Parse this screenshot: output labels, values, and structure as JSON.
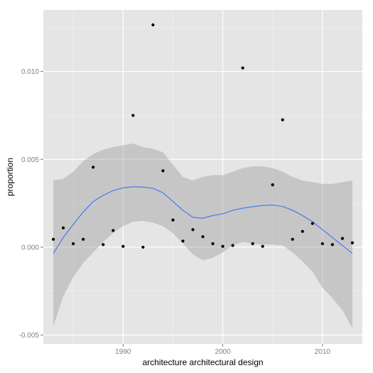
{
  "chart_data": {
    "type": "scatter",
    "title": "",
    "xlabel": "architecture architectural design",
    "ylabel": "proportion",
    "xlim": [
      1982,
      2014
    ],
    "ylim": [
      -0.0055,
      0.0135
    ],
    "x_ticks": [
      1990,
      2000,
      2010
    ],
    "x_tick_labels": [
      "1990",
      "2000",
      "2010"
    ],
    "y_ticks": [
      -0.005,
      0.0,
      0.005,
      0.01
    ],
    "y_tick_labels": [
      "-0.005",
      "0.000",
      "0.005",
      "0.010"
    ],
    "grid": true,
    "points": {
      "x": [
        1983,
        1984,
        1985,
        1986,
        1987,
        1988,
        1989,
        1990,
        1991,
        1992,
        1993,
        1994,
        1995,
        1996,
        1997,
        1998,
        1999,
        2000,
        2001,
        2002,
        2003,
        2004,
        2005,
        2006,
        2007,
        2008,
        2009,
        2010,
        2011,
        2012,
        2013
      ],
      "y": [
        0.00045,
        0.0011,
        0.0002,
        0.00045,
        0.00455,
        0.00015,
        0.00095,
        5e-05,
        0.0075,
        0.0,
        0.01265,
        0.00435,
        0.00155,
        0.00035,
        0.001,
        0.0006,
        0.0002,
        5e-05,
        0.0001,
        0.0102,
        0.0002,
        5e-05,
        0.00355,
        0.00725,
        0.00045,
        0.0009,
        0.00135,
        0.0002,
        0.00015,
        0.0005,
        0.00025
      ]
    },
    "smooth": {
      "x": [
        1983,
        1984,
        1985,
        1986,
        1987,
        1988,
        1989,
        1990,
        1991,
        1992,
        1993,
        1994,
        1995,
        1996,
        1997,
        1998,
        1999,
        2000,
        2001,
        2002,
        2003,
        2004,
        2005,
        2006,
        2007,
        2008,
        2009,
        2010,
        2011,
        2012,
        2013
      ],
      "y": [
        -0.00035,
        0.00055,
        0.0013,
        0.002,
        0.0026,
        0.00295,
        0.00322,
        0.00338,
        0.00344,
        0.00342,
        0.00335,
        0.0031,
        0.0026,
        0.0021,
        0.0017,
        0.00165,
        0.0018,
        0.0019,
        0.0021,
        0.00222,
        0.0023,
        0.00238,
        0.0024,
        0.00232,
        0.0021,
        0.0018,
        0.00145,
        0.001,
        0.00055,
        0.0001,
        -0.00035
      ],
      "ymin": [
        -0.0045,
        -0.0028,
        -0.0017,
        -0.0009,
        -0.0003,
        0.0003,
        0.0008,
        0.0012,
        0.00145,
        0.0015,
        0.0014,
        0.0012,
        0.0008,
        0.0002,
        -0.0004,
        -0.00075,
        -0.0006,
        -0.0003,
        0.0001,
        0.0003,
        0.0002,
        0.00015,
        0.00015,
        0.0001,
        -0.0003,
        -0.0008,
        -0.0014,
        -0.0023,
        -0.0029,
        -0.0036,
        -0.0046
      ],
      "ymax": [
        0.0038,
        0.0039,
        0.0043,
        0.0049,
        0.0053,
        0.00555,
        0.0057,
        0.0058,
        0.0059,
        0.0057,
        0.0056,
        0.0054,
        0.0047,
        0.004,
        0.0038,
        0.004,
        0.0041,
        0.0041,
        0.0043,
        0.0045,
        0.0046,
        0.0046,
        0.0045,
        0.0043,
        0.004,
        0.0038,
        0.0037,
        0.0036,
        0.0036,
        0.0037,
        0.0038
      ]
    },
    "colors": {
      "panel": "#e5e5e5",
      "grid_major": "#ffffff",
      "grid_minor": "#f2f2f2",
      "points": "#000000",
      "smooth_line": "#3366ff",
      "ribbon": "#999999"
    }
  }
}
